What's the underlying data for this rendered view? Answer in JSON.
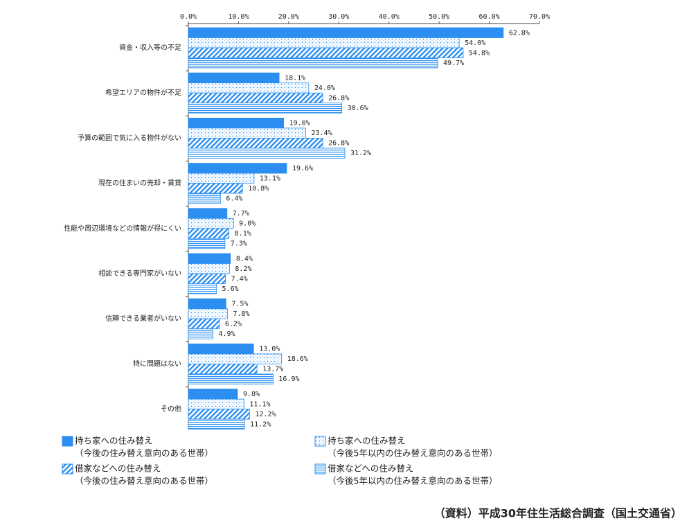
{
  "chart_data": {
    "type": "hbar",
    "categories": [
      "資金・収入等の不足",
      "希望エリアの物件が不足",
      "予算の範囲で気に入る物件がない",
      "現在の住まいの売却・賃貸",
      "性能や周辺環境などの情報が得にくい",
      "相談できる専門家がいない",
      "信頼できる業者がいない",
      "特に問題はない",
      "その他"
    ],
    "xlim": [
      0,
      70
    ],
    "xticks": [
      {
        "value": 0,
        "label": "0.0%"
      },
      {
        "value": 10,
        "label": "10.0%"
      },
      {
        "value": 20,
        "label": "20.0%"
      },
      {
        "value": 30,
        "label": "30.0%"
      },
      {
        "value": 40,
        "label": "40.0%"
      },
      {
        "value": 50,
        "label": "50.0%"
      },
      {
        "value": 60,
        "label": "60.0%"
      },
      {
        "value": 70,
        "label": "70.0%"
      }
    ],
    "series": [
      {
        "name": "持ち家への住み替え",
        "name_detail": "（今後の住み替え意向のある世帯）",
        "color": "#2b8ef0",
        "pattern": "solid",
        "values": [
          62.8,
          18.1,
          19.0,
          19.6,
          7.7,
          8.4,
          7.5,
          13.0,
          9.8
        ],
        "value_labels": [
          "62.8%",
          "18.1%",
          "19.0%",
          "19.6%",
          "7.7%",
          "8.4%",
          "7.5%",
          "13.0%",
          "9.8%"
        ]
      },
      {
        "name": "持ち家への住み替え",
        "name_detail": "（今後5年以内の住み替え意向のある世帯）",
        "color": "#2b8ef0",
        "pattern": "dots",
        "values": [
          54.0,
          24.0,
          23.4,
          13.1,
          9.0,
          8.2,
          7.8,
          18.6,
          11.1
        ],
        "value_labels": [
          "54.0%",
          "24.0%",
          "23.4%",
          "13.1%",
          "9.0%",
          "8.2%",
          "7.8%",
          "18.6%",
          "11.1%"
        ]
      },
      {
        "name": "借家などへの住み替え",
        "name_detail": "（今後の住み替え意向のある世帯）",
        "color": "#2b8ef0",
        "pattern": "diagonal",
        "values": [
          54.8,
          26.8,
          26.8,
          10.8,
          8.1,
          7.4,
          6.2,
          13.7,
          12.2
        ],
        "value_labels": [
          "54.8%",
          "26.8%",
          "26.8%",
          "10.8%",
          "8.1%",
          "7.4%",
          "6.2%",
          "13.7%",
          "12.2%"
        ]
      },
      {
        "name": "借家などへの住み替え",
        "name_detail": "（今後5年以内の住み替え意向のある世帯）",
        "color": "#2b8ef0",
        "pattern": "horizontal",
        "values": [
          49.7,
          30.6,
          31.2,
          6.4,
          7.3,
          5.6,
          4.9,
          16.9,
          11.2
        ],
        "value_labels": [
          "49.7%",
          "30.6%",
          "31.2%",
          "6.4%",
          "7.3%",
          "5.6%",
          "4.9%",
          "16.9%",
          "11.2%"
        ]
      }
    ],
    "source": "（資料）平成30年住生活総合調査（国土交通省）"
  }
}
